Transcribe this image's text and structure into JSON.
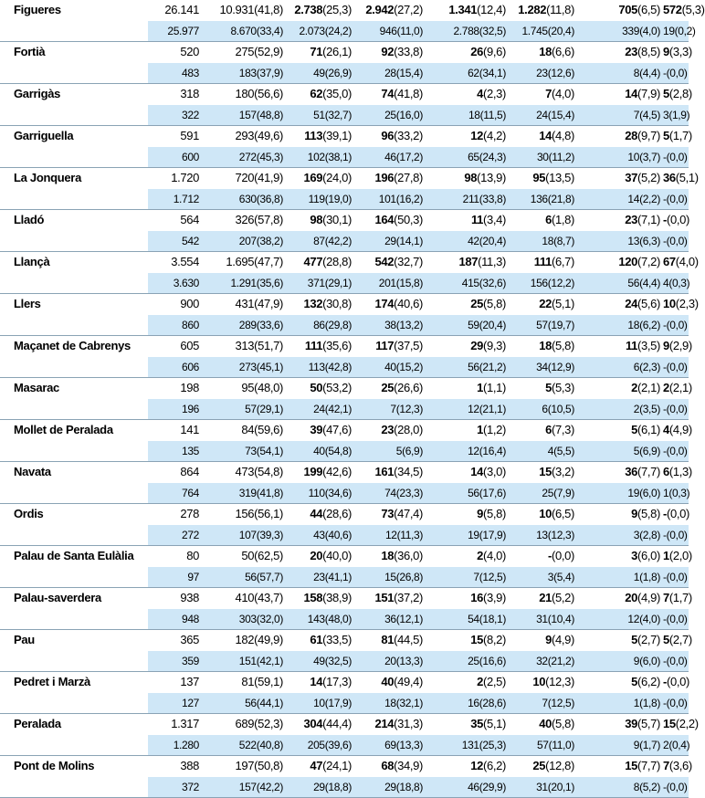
{
  "columns_bold": [
    false,
    false,
    false,
    true,
    true,
    true,
    true,
    true,
    true
  ],
  "rows": [
    {
      "name": "Figueres",
      "a": [
        "26.141",
        "10.931",
        "(41,8)",
        "2.738",
        "(25,3)",
        "2.942",
        "(27,2)",
        "1.341",
        "(12,4)",
        "1.282",
        "(11,8)",
        "705",
        "(6,5)",
        "572",
        "(5,3)"
      ],
      "b": [
        "25.977",
        "8.670",
        "(33,4)",
        "2.073",
        "(24,2)",
        "946",
        "(11,0)",
        "2.788",
        "(32,5)",
        "1.745",
        "(20,4)",
        "339",
        "(4,0)",
        "19",
        "(0,2)"
      ]
    },
    {
      "name": "Fortià",
      "a": [
        "520",
        "275",
        "(52,9)",
        "71",
        "(26,1)",
        "92",
        "(33,8)",
        "26",
        "(9,6)",
        "18",
        "(6,6)",
        "23",
        "(8,5)",
        "9",
        "(3,3)"
      ],
      "b": [
        "483",
        "183",
        "(37,9)",
        "49",
        "(26,9)",
        "28",
        "(15,4)",
        "62",
        "(34,1)",
        "23",
        "(12,6)",
        "8",
        "(4,4)",
        "-",
        "(0,0)"
      ]
    },
    {
      "name": "Garrigàs",
      "a": [
        "318",
        "180",
        "(56,6)",
        "62",
        "(35,0)",
        "74",
        "(41,8)",
        "4",
        "(2,3)",
        "7",
        "(4,0)",
        "14",
        "(7,9)",
        "5",
        "(2,8)"
      ],
      "b": [
        "322",
        "157",
        "(48,8)",
        "51",
        "(32,7)",
        "25",
        "(16,0)",
        "18",
        "(11,5)",
        "24",
        "(15,4)",
        "7",
        "(4,5)",
        "3",
        "(1,9)"
      ]
    },
    {
      "name": "Garriguella",
      "a": [
        "591",
        "293",
        "(49,6)",
        "113",
        "(39,1)",
        "96",
        "(33,2)",
        "12",
        "(4,2)",
        "14",
        "(4,8)",
        "28",
        "(9,7)",
        "5",
        "(1,7)"
      ],
      "b": [
        "600",
        "272",
        "(45,3)",
        "102",
        "(38,1)",
        "46",
        "(17,2)",
        "65",
        "(24,3)",
        "30",
        "(11,2)",
        "10",
        "(3,7)",
        "-",
        "(0,0)"
      ]
    },
    {
      "name": "La Jonquera",
      "a": [
        "1.720",
        "720",
        "(41,9)",
        "169",
        "(24,0)",
        "196",
        "(27,8)",
        "98",
        "(13,9)",
        "95",
        "(13,5)",
        "37",
        "(5,2)",
        "36",
        "(5,1)"
      ],
      "b": [
        "1.712",
        "630",
        "(36,8)",
        "119",
        "(19,0)",
        "101",
        "(16,2)",
        "211",
        "(33,8)",
        "136",
        "(21,8)",
        "14",
        "(2,2)",
        "-",
        "(0,0)"
      ]
    },
    {
      "name": "Lladó",
      "a": [
        "564",
        "326",
        "(57,8)",
        "98",
        "(30,1)",
        "164",
        "(50,3)",
        "11",
        "(3,4)",
        "6",
        "(1,8)",
        "23",
        "(7,1)",
        "-",
        "(0,0)"
      ],
      "b": [
        "542",
        "207",
        "(38,2)",
        "87",
        "(42,2)",
        "29",
        "(14,1)",
        "42",
        "(20,4)",
        "18",
        "(8,7)",
        "13",
        "(6,3)",
        "-",
        "(0,0)"
      ]
    },
    {
      "name": "Llançà",
      "a": [
        "3.554",
        "1.695",
        "(47,7)",
        "477",
        "(28,8)",
        "542",
        "(32,7)",
        "187",
        "(11,3)",
        "111",
        "(6,7)",
        "120",
        "(7,2)",
        "67",
        "(4,0)"
      ],
      "b": [
        "3.630",
        "1.291",
        "(35,6)",
        "371",
        "(29,1)",
        "201",
        "(15,8)",
        "415",
        "(32,6)",
        "156",
        "(12,2)",
        "56",
        "(4,4)",
        "4",
        "(0,3)"
      ]
    },
    {
      "name": "Llers",
      "a": [
        "900",
        "431",
        "(47,9)",
        "132",
        "(30,8)",
        "174",
        "(40,6)",
        "25",
        "(5,8)",
        "22",
        "(5,1)",
        "24",
        "(5,6)",
        "10",
        "(2,3)"
      ],
      "b": [
        "860",
        "289",
        "(33,6)",
        "86",
        "(29,8)",
        "38",
        "(13,2)",
        "59",
        "(20,4)",
        "57",
        "(19,7)",
        "18",
        "(6,2)",
        "-",
        "(0,0)"
      ]
    },
    {
      "name": "Maçanet de Cabrenys",
      "a": [
        "605",
        "313",
        "(51,7)",
        "111",
        "(35,6)",
        "117",
        "(37,5)",
        "29",
        "(9,3)",
        "18",
        "(5,8)",
        "11",
        "(3,5)",
        "9",
        "(2,9)"
      ],
      "b": [
        "606",
        "273",
        "(45,1)",
        "113",
        "(42,8)",
        "40",
        "(15,2)",
        "56",
        "(21,2)",
        "34",
        "(12,9)",
        "6",
        "(2,3)",
        "-",
        "(0,0)"
      ]
    },
    {
      "name": "Masarac",
      "a": [
        "198",
        "95",
        "(48,0)",
        "50",
        "(53,2)",
        "25",
        "(26,6)",
        "1",
        "(1,1)",
        "5",
        "(5,3)",
        "2",
        "(2,1)",
        "2",
        "(2,1)"
      ],
      "b": [
        "196",
        "57",
        "(29,1)",
        "24",
        "(42,1)",
        "7",
        "(12,3)",
        "12",
        "(21,1)",
        "6",
        "(10,5)",
        "2",
        "(3,5)",
        "-",
        "(0,0)"
      ]
    },
    {
      "name": "Mollet de Peralada",
      "a": [
        "141",
        "84",
        "(59,6)",
        "39",
        "(47,6)",
        "23",
        "(28,0)",
        "1",
        "(1,2)",
        "6",
        "(7,3)",
        "5",
        "(6,1)",
        "4",
        "(4,9)"
      ],
      "b": [
        "135",
        "73",
        "(54,1)",
        "40",
        "(54,8)",
        "5",
        "(6,9)",
        "12",
        "(16,4)",
        "4",
        "(5,5)",
        "5",
        "(6,9)",
        "-",
        "(0,0)"
      ]
    },
    {
      "name": "Navata",
      "a": [
        "864",
        "473",
        "(54,8)",
        "199",
        "(42,6)",
        "161",
        "(34,5)",
        "14",
        "(3,0)",
        "15",
        "(3,2)",
        "36",
        "(7,7)",
        "6",
        "(1,3)"
      ],
      "b": [
        "764",
        "319",
        "(41,8)",
        "110",
        "(34,6)",
        "74",
        "(23,3)",
        "56",
        "(17,6)",
        "25",
        "(7,9)",
        "19",
        "(6,0)",
        "1",
        "(0,3)"
      ]
    },
    {
      "name": "Ordis",
      "a": [
        "278",
        "156",
        "(56,1)",
        "44",
        "(28,6)",
        "73",
        "(47,4)",
        "9",
        "(5,8)",
        "10",
        "(6,5)",
        "9",
        "(5,8)",
        "-",
        "(0,0)"
      ],
      "b": [
        "272",
        "107",
        "(39,3)",
        "43",
        "(40,6)",
        "12",
        "(11,3)",
        "19",
        "(17,9)",
        "13",
        "(12,3)",
        "3",
        "(2,8)",
        "-",
        "(0,0)"
      ]
    },
    {
      "name": "Palau de Santa Eulàlia",
      "a": [
        "80",
        "50",
        "(62,5)",
        "20",
        "(40,0)",
        "18",
        "(36,0)",
        "2",
        "(4,0)",
        "-",
        "(0,0)",
        "3",
        "(6,0)",
        "1",
        "(2,0)"
      ],
      "b": [
        "97",
        "56",
        "(57,7)",
        "23",
        "(41,1)",
        "15",
        "(26,8)",
        "7",
        "(12,5)",
        "3",
        "(5,4)",
        "1",
        "(1,8)",
        "-",
        "(0,0)"
      ]
    },
    {
      "name": "Palau-saverdera",
      "a": [
        "938",
        "410",
        "(43,7)",
        "158",
        "(38,9)",
        "151",
        "(37,2)",
        "16",
        "(3,9)",
        "21",
        "(5,2)",
        "20",
        "(4,9)",
        "7",
        "(1,7)"
      ],
      "b": [
        "948",
        "303",
        "(32,0)",
        "143",
        "(48,0)",
        "36",
        "(12,1)",
        "54",
        "(18,1)",
        "31",
        "(10,4)",
        "12",
        "(4,0)",
        "-",
        "(0,0)"
      ]
    },
    {
      "name": "Pau",
      "a": [
        "365",
        "182",
        "(49,9)",
        "61",
        "(33,5)",
        "81",
        "(44,5)",
        "15",
        "(8,2)",
        "9",
        "(4,9)",
        "5",
        "(2,7)",
        "5",
        "(2,7)"
      ],
      "b": [
        "359",
        "151",
        "(42,1)",
        "49",
        "(32,5)",
        "20",
        "(13,3)",
        "25",
        "(16,6)",
        "32",
        "(21,2)",
        "9",
        "(6,0)",
        "-",
        "(0,0)"
      ]
    },
    {
      "name": "Pedret i Marzà",
      "a": [
        "137",
        "81",
        "(59,1)",
        "14",
        "(17,3)",
        "40",
        "(49,4)",
        "2",
        "(2,5)",
        "10",
        "(12,3)",
        "5",
        "(6,2)",
        "-",
        "(0,0)"
      ],
      "b": [
        "127",
        "56",
        "(44,1)",
        "10",
        "(17,9)",
        "18",
        "(32,1)",
        "16",
        "(28,6)",
        "7",
        "(12,5)",
        "1",
        "(1,8)",
        "-",
        "(0,0)"
      ]
    },
    {
      "name": "Peralada",
      "a": [
        "1.317",
        "689",
        "(52,3)",
        "304",
        "(44,4)",
        "214",
        "(31,3)",
        "35",
        "(5,1)",
        "40",
        "(5,8)",
        "39",
        "(5,7)",
        "15",
        "(2,2)"
      ],
      "b": [
        "1.280",
        "522",
        "(40,8)",
        "205",
        "(39,6)",
        "69",
        "(13,3)",
        "131",
        "(25,3)",
        "57",
        "(11,0)",
        "9",
        "(1,7)",
        "2",
        "(0,4)"
      ]
    },
    {
      "name": "Pont de Molins",
      "a": [
        "388",
        "197",
        "(50,8)",
        "47",
        "(24,1)",
        "68",
        "(34,9)",
        "12",
        "(6,2)",
        "25",
        "(12,8)",
        "15",
        "(7,7)",
        "7",
        "(3,6)"
      ],
      "b": [
        "372",
        "157",
        "(42,2)",
        "29",
        "(18,8)",
        "29",
        "(18,8)",
        "46",
        "(29,9)",
        "31",
        "(20,1)",
        "8",
        "(5,2)",
        "-",
        "(0,0)"
      ]
    }
  ]
}
